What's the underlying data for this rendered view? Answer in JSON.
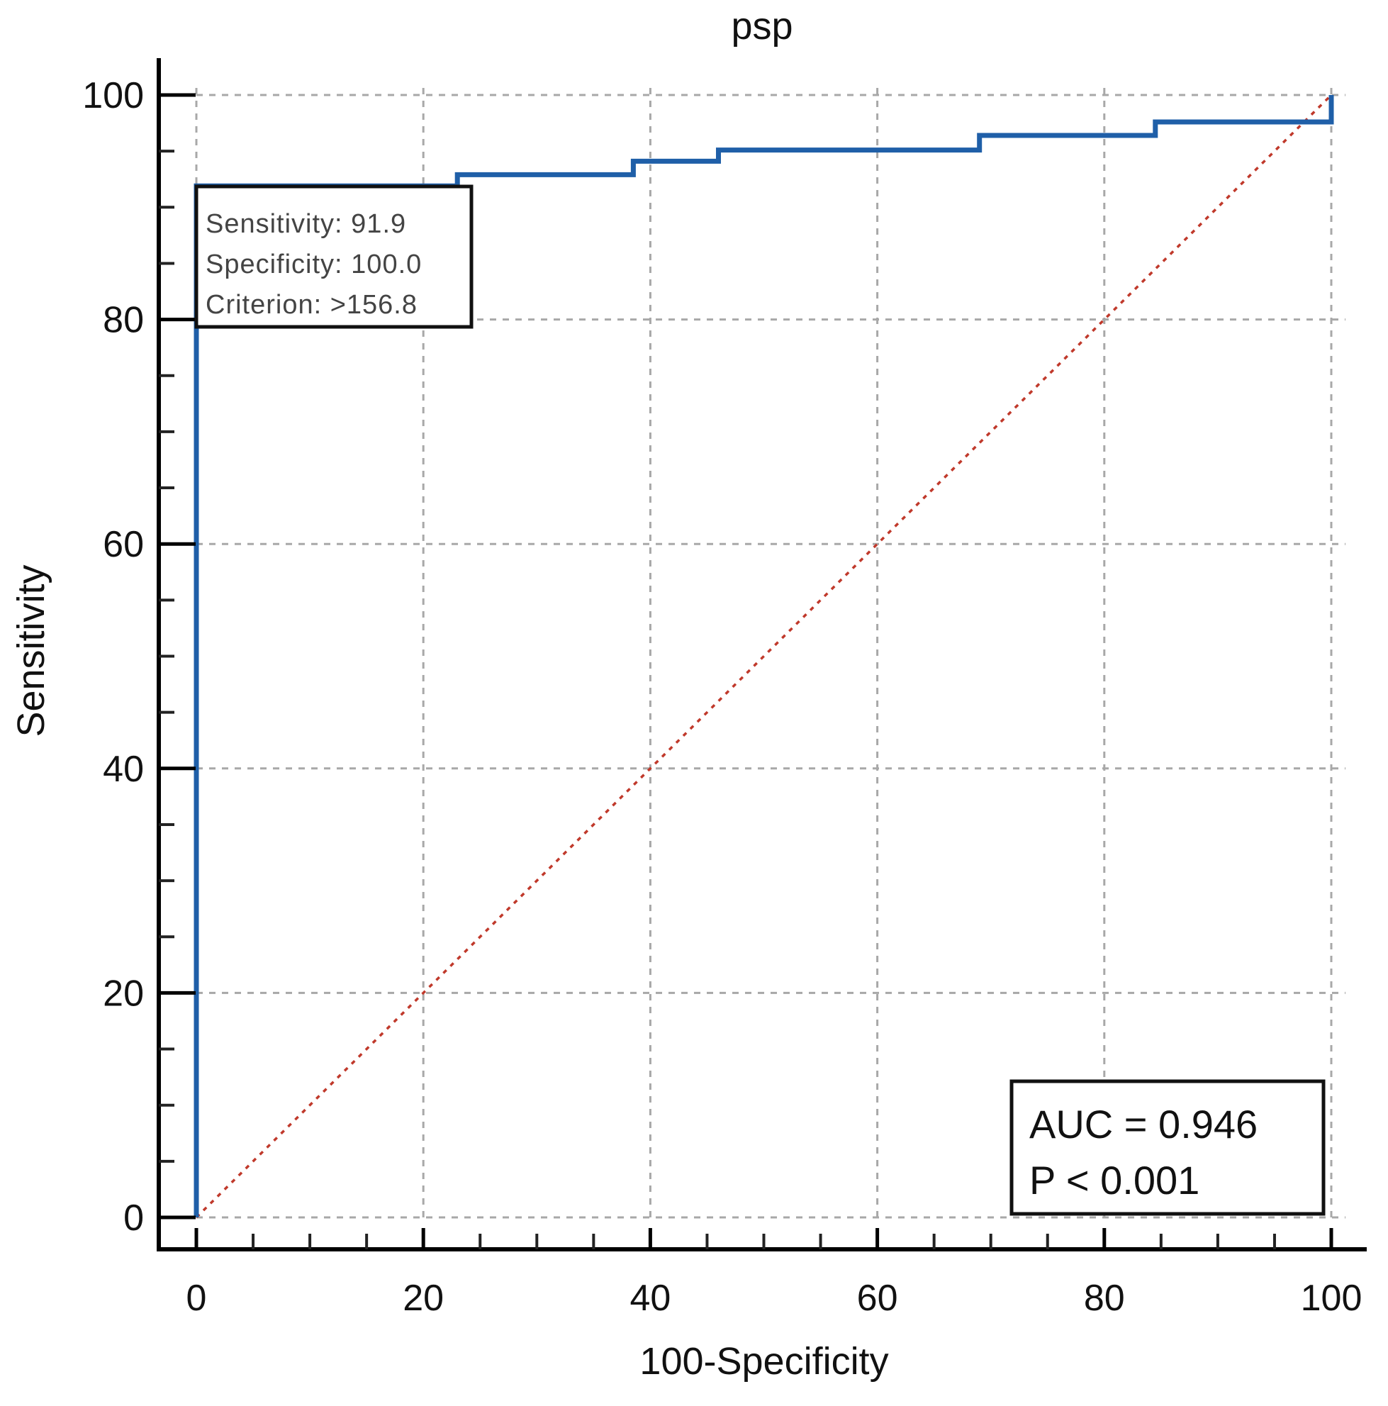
{
  "chart_data": {
    "type": "line",
    "title": "psp",
    "xlabel": "100-Specificity",
    "ylabel": "Sensitivity",
    "xlim": [
      0,
      100
    ],
    "ylim": [
      0,
      100
    ],
    "x_ticks": [
      "0",
      "20",
      "40",
      "60",
      "80",
      "100"
    ],
    "y_ticks": [
      "0",
      "20",
      "40",
      "60",
      "80",
      "100"
    ],
    "grid": true,
    "series": [
      {
        "style": "step",
        "color": "#1f5fa8",
        "x": [
          0,
          0,
          23,
          23,
          38.5,
          38.5,
          46,
          46,
          69,
          69,
          84.5,
          84.5,
          100,
          100
        ],
        "y": [
          0,
          91.9,
          91.9,
          92.9,
          92.9,
          94.1,
          94.1,
          95.1,
          95.1,
          96.4,
          96.4,
          97.6,
          97.6,
          100
        ]
      },
      {
        "style": "dotted-diagonal",
        "color": "#c0392b",
        "x": [
          0,
          100
        ],
        "y": [
          0,
          100
        ]
      }
    ],
    "annotations": {
      "criterion_box": [
        "Sensitivity: 91.9",
        "Specificity: 100.0",
        "Criterion: >156.8"
      ],
      "stats_box": [
        "AUC = 0.946",
        "P < 0.001"
      ]
    }
  }
}
